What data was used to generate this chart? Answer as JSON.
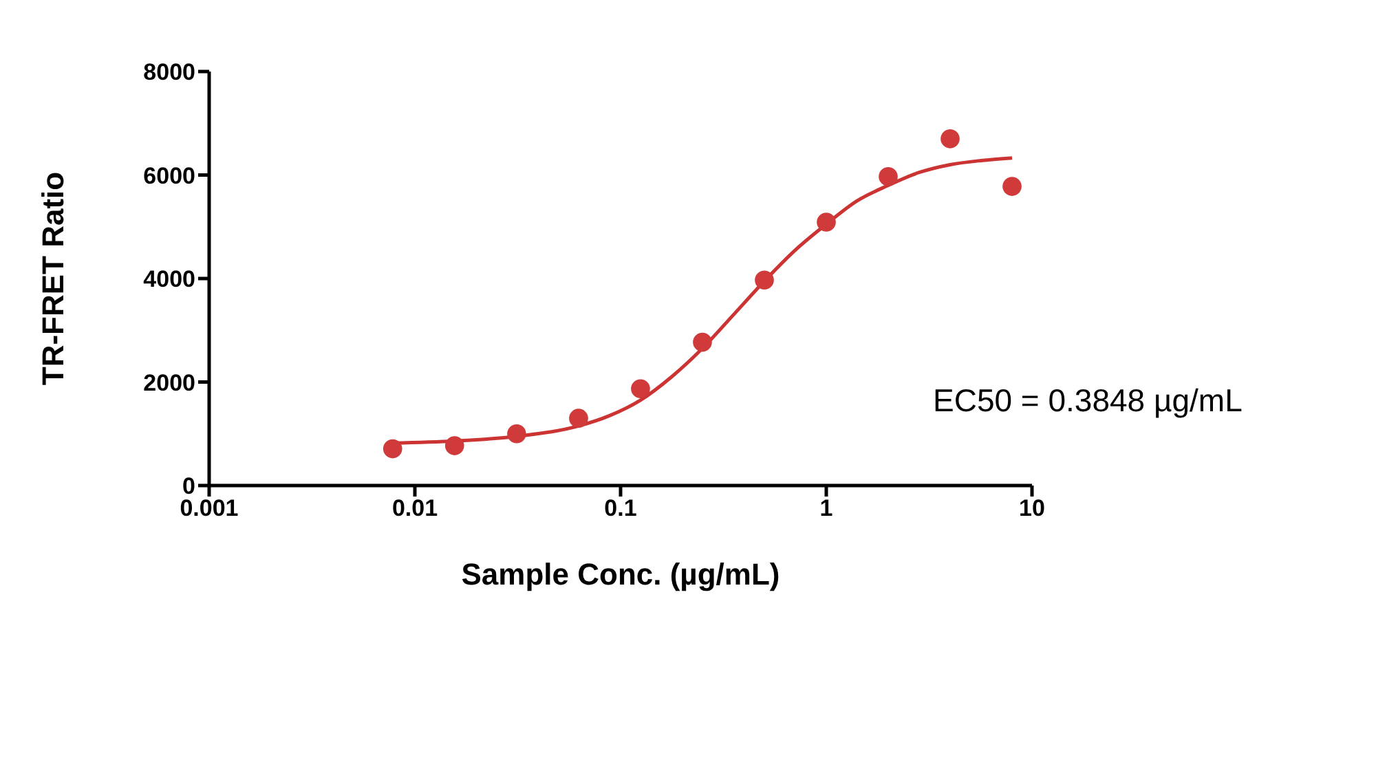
{
  "chart_data": {
    "type": "scatter",
    "xlabel": "Sample Conc. (µg/mL)",
    "ylabel": "TR-FRET Ratio",
    "log": "x",
    "xlim": [
      0.001,
      10
    ],
    "xticks": [
      0.001,
      0.01,
      0.1,
      1,
      10
    ],
    "ylim": [
      0,
      8000
    ],
    "yticks": [
      0,
      2000,
      4000,
      6000,
      8000
    ],
    "grid": false,
    "line_style": "solid",
    "annotations": [
      "EC50 = 0.3848 µg/mL"
    ],
    "series": [
      {
        "marker": "circle",
        "color": "#d03a3a",
        "x": [
          0.0078,
          0.0156,
          0.03125,
          0.0625,
          0.125,
          0.25,
          0.5,
          1,
          2,
          4,
          8
        ],
        "values": [
          710,
          770,
          1000,
          1300,
          1870,
          2770,
          3970,
          5090,
          5970,
          6700,
          5780
        ]
      },
      {
        "type": "line",
        "marker": "none",
        "color": "#cc3333",
        "x": [
          0.0078,
          0.0156,
          0.03125,
          0.0625,
          0.0884,
          0.125,
          0.177,
          0.25,
          0.354,
          0.5,
          0.707,
          1,
          1.41,
          2,
          2.83,
          4,
          5.66,
          8
        ],
        "values": [
          820,
          860,
          950,
          1150,
          1350,
          1650,
          2100,
          2650,
          3300,
          3950,
          4550,
          5050,
          5500,
          5800,
          6050,
          6200,
          6280,
          6330
        ]
      }
    ]
  }
}
